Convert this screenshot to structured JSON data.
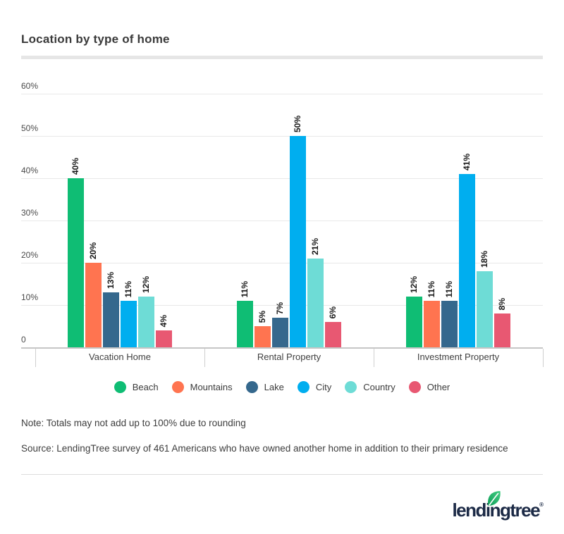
{
  "title": "Location by type of home",
  "chart_data": {
    "type": "bar",
    "categories": [
      "Vacation Home",
      "Rental Property",
      "Investment Property"
    ],
    "series": [
      {
        "name": "Beach",
        "color": "#0fbd74",
        "values": [
          40,
          11,
          12
        ]
      },
      {
        "name": "Mountains",
        "color": "#ff7450",
        "values": [
          20,
          5,
          11
        ]
      },
      {
        "name": "Lake",
        "color": "#35688d",
        "values": [
          13,
          7,
          11
        ]
      },
      {
        "name": "City",
        "color": "#00aeef",
        "values": [
          11,
          50,
          41
        ]
      },
      {
        "name": "Country",
        "color": "#6edcd6",
        "values": [
          12,
          21,
          18
        ]
      },
      {
        "name": "Other",
        "color": "#e85872",
        "values": [
          4,
          6,
          8
        ]
      }
    ],
    "value_suffix": "%",
    "y_ticks": [
      "0",
      "10%",
      "20%",
      "30%",
      "40%",
      "50%",
      "60%"
    ],
    "ylim": [
      0,
      60
    ],
    "grid": true,
    "legend_position": "bottom",
    "value_labels_rotated": true
  },
  "note": "Note: Totals may not add up to 100% due to rounding",
  "source": "Source: LendingTree survey of 461 Americans who have owned another home in addition to their primary residence",
  "logo": {
    "brand": "lendingtree",
    "registered": "®",
    "leaf_color": "#21b26a",
    "text_color": "#1c2a46"
  }
}
